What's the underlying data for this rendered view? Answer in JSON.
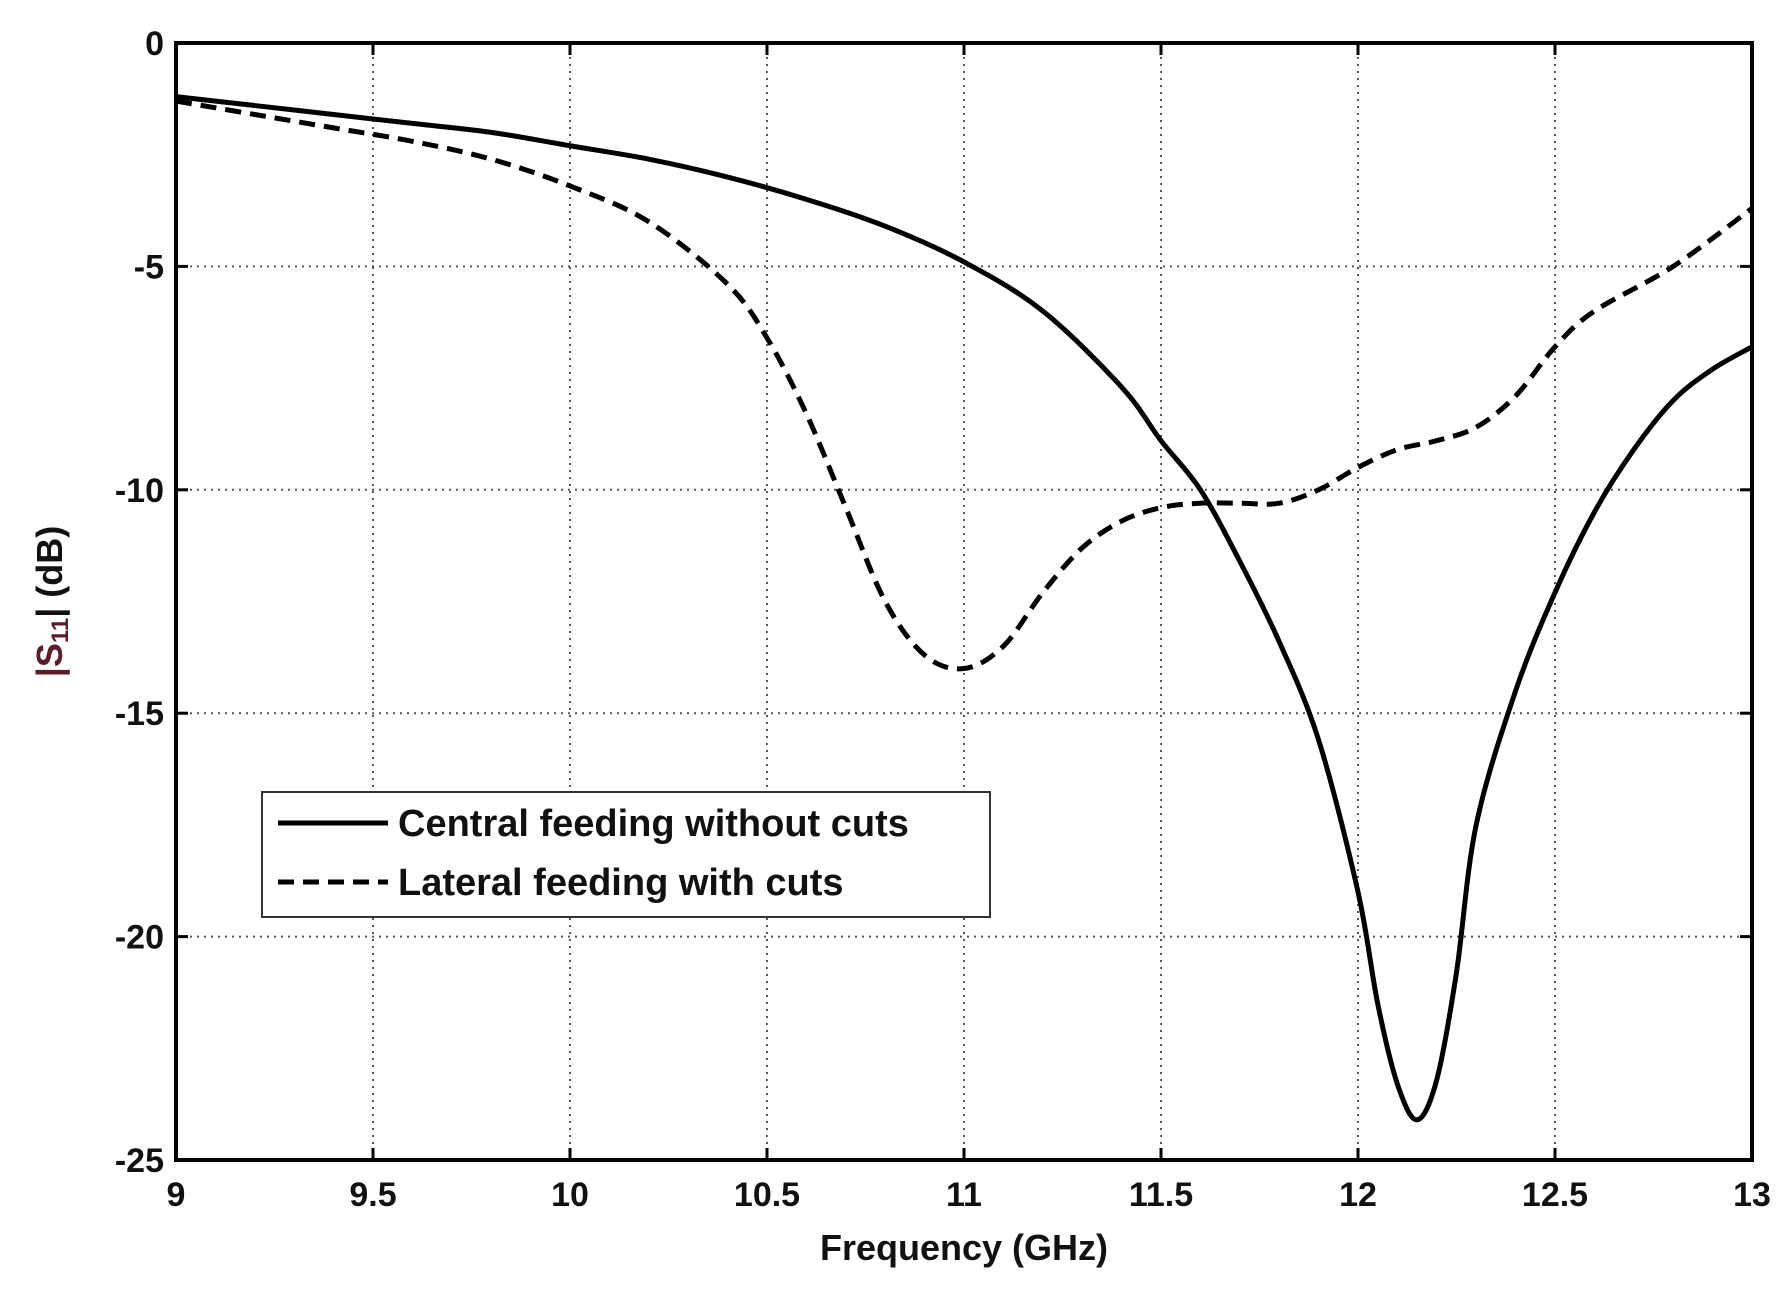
{
  "chart_data": {
    "type": "line",
    "title": "",
    "xlabel": "Frequency (GHz)",
    "ylabel_prefix": "|S",
    "ylabel_subscript": "11",
    "ylabel_suffix": "| (dB)",
    "xlim": [
      9,
      13
    ],
    "ylim": [
      -25,
      0
    ],
    "xticks": [
      9,
      9.5,
      10,
      10.5,
      11,
      11.5,
      12,
      12.5,
      13
    ],
    "xtick_labels": [
      "9",
      "9.5",
      "10",
      "10.5",
      "11",
      "11.5",
      "12",
      "12.5",
      "13"
    ],
    "yticks": [
      0,
      -5,
      -10,
      -15,
      -20,
      -25
    ],
    "ytick_labels": [
      "0",
      "-5",
      "-10",
      "-15",
      "-20",
      "-25"
    ],
    "grid": true,
    "legend_position": "lower-left",
    "colors": {
      "line": "#000000",
      "grid": "#555555",
      "axis": "#000000",
      "ylabel_accent": "#5a1e2a"
    },
    "series": [
      {
        "name": "Central feeding without cuts",
        "style": "solid",
        "x": [
          9.0,
          9.2,
          9.4,
          9.6,
          9.8,
          10.0,
          10.2,
          10.4,
          10.6,
          10.8,
          11.0,
          11.2,
          11.4,
          11.5,
          11.6,
          11.7,
          11.8,
          11.9,
          12.0,
          12.05,
          12.1,
          12.15,
          12.2,
          12.25,
          12.3,
          12.4,
          12.5,
          12.6,
          12.7,
          12.8,
          12.9,
          13.0
        ],
        "y": [
          -1.2,
          -1.4,
          -1.6,
          -1.8,
          -2.0,
          -2.3,
          -2.6,
          -3.0,
          -3.5,
          -4.1,
          -4.9,
          -6.0,
          -7.7,
          -8.9,
          -10.0,
          -11.6,
          -13.4,
          -15.6,
          -19.0,
          -21.5,
          -23.3,
          -24.1,
          -23.2,
          -20.8,
          -17.5,
          -14.5,
          -12.3,
          -10.5,
          -9.1,
          -8.0,
          -7.3,
          -6.8
        ]
      },
      {
        "name": "Lateral feeding with cuts",
        "style": "dashed",
        "x": [
          9.0,
          9.2,
          9.4,
          9.6,
          9.8,
          10.0,
          10.2,
          10.4,
          10.5,
          10.6,
          10.7,
          10.8,
          10.9,
          11.0,
          11.1,
          11.2,
          11.3,
          11.4,
          11.5,
          11.6,
          11.7,
          11.8,
          11.9,
          12.0,
          12.1,
          12.2,
          12.3,
          12.4,
          12.5,
          12.6,
          12.8,
          13.0
        ],
        "y": [
          -1.3,
          -1.6,
          -1.9,
          -2.2,
          -2.6,
          -3.2,
          -4.0,
          -5.4,
          -6.6,
          -8.3,
          -10.4,
          -12.5,
          -13.7,
          -14.0,
          -13.5,
          -12.3,
          -11.3,
          -10.7,
          -10.4,
          -10.3,
          -10.3,
          -10.3,
          -10.0,
          -9.5,
          -9.1,
          -8.9,
          -8.6,
          -7.9,
          -6.8,
          -6.0,
          -5.0,
          -3.7
        ]
      }
    ]
  }
}
